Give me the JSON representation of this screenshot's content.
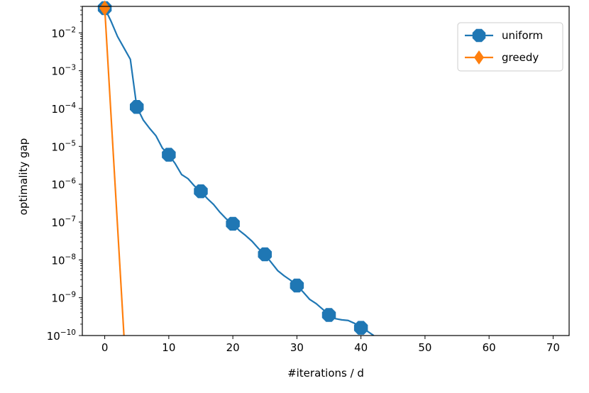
{
  "chart_data": {
    "type": "line",
    "title": "",
    "xlabel": "#iterations / d",
    "ylabel": "optimality gap",
    "xlim": [
      -3.5,
      72.5
    ],
    "ylim_log10": [
      -10,
      -1.3
    ],
    "y_scale": "log",
    "grid": false,
    "legend_position": "top-right",
    "x_ticks": [
      0,
      10,
      20,
      30,
      40,
      50,
      60,
      70
    ],
    "y_ticks": [
      {
        "base": "10",
        "exp": "−2",
        "value": 0.01
      },
      {
        "base": "10",
        "exp": "−3",
        "value": 0.001
      },
      {
        "base": "10",
        "exp": "−4",
        "value": 0.0001
      },
      {
        "base": "10",
        "exp": "−5",
        "value": 1e-05
      },
      {
        "base": "10",
        "exp": "−6",
        "value": 1e-06
      },
      {
        "base": "10",
        "exp": "−7",
        "value": 1e-07
      },
      {
        "base": "10",
        "exp": "−8",
        "value": 1e-08
      },
      {
        "base": "10",
        "exp": "−9",
        "value": 1e-09
      },
      {
        "base": "10",
        "exp": "−10",
        "value": 1e-10
      }
    ],
    "series": [
      {
        "name": "uniform",
        "color": "#1f77b4",
        "marker": "octagon",
        "marker_every": 5,
        "x": [
          0,
          1,
          2,
          3,
          4,
          5,
          6,
          7,
          8,
          9,
          10,
          11,
          12,
          13,
          14,
          15,
          16,
          17,
          18,
          19,
          20,
          21,
          22,
          23,
          24,
          25,
          26,
          27,
          28,
          29,
          30,
          31,
          32,
          33,
          34,
          35,
          36,
          37,
          38,
          39,
          40,
          41,
          42
        ],
        "y": [
          0.045,
          0.02,
          0.008,
          0.004,
          0.002,
          0.00011,
          5e-05,
          3e-05,
          1.9e-05,
          9e-06,
          6e-06,
          3.5e-06,
          1.8e-06,
          1.4e-06,
          9e-07,
          6.5e-07,
          4.2e-07,
          2.9e-07,
          1.8e-07,
          1.2e-07,
          9e-08,
          6e-08,
          4.4e-08,
          3.1e-08,
          2e-08,
          1.4e-08,
          8.5e-09,
          5.2e-09,
          3.8e-09,
          2.9e-09,
          2.1e-09,
          1.4e-09,
          9e-10,
          7e-10,
          5e-10,
          3.5e-10,
          2.8e-10,
          2.6e-10,
          2.5e-10,
          2.1e-10,
          1.6e-10,
          1.3e-10,
          1e-10
        ]
      },
      {
        "name": "greedy",
        "color": "#ff7f0e",
        "marker": "thin-diamond",
        "marker_every": 5,
        "x": [
          0,
          3
        ],
        "y": [
          0.045,
          1e-10
        ]
      }
    ]
  }
}
